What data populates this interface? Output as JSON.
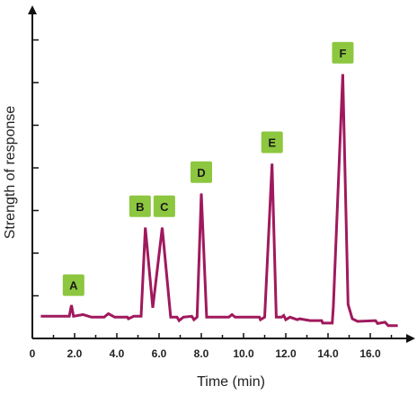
{
  "chart_data": {
    "type": "line",
    "title": "",
    "xlabel": "Time (min)",
    "ylabel": "Strength of response",
    "xlim": [
      0,
      17.3
    ],
    "ylim": [
      0,
      8
    ],
    "xticks": [
      "0",
      "2.0",
      "4.0",
      "6.0",
      "8.0",
      "10.0",
      "12.0",
      "14.0",
      "16.0"
    ],
    "xtick_values": [
      0,
      2,
      4,
      6,
      8,
      10,
      12,
      14,
      16
    ],
    "ytick_count": 7,
    "grid": false,
    "line_color": "#a0195d",
    "label_color": "#8dc63f",
    "series": [
      {
        "points": [
          [
            0.4,
            0.52
          ],
          [
            1.75,
            0.52
          ],
          [
            1.85,
            0.78
          ],
          [
            1.95,
            0.52
          ],
          [
            2.4,
            0.56
          ],
          [
            2.8,
            0.5
          ],
          [
            3.4,
            0.5
          ],
          [
            3.6,
            0.58
          ],
          [
            3.9,
            0.5
          ],
          [
            4.5,
            0.5
          ],
          [
            4.55,
            0.46
          ],
          [
            4.8,
            0.52
          ],
          [
            5.15,
            0.52
          ],
          [
            5.35,
            2.6
          ],
          [
            5.7,
            0.72
          ],
          [
            6.15,
            2.6
          ],
          [
            6.55,
            0.5
          ],
          [
            6.85,
            0.5
          ],
          [
            6.95,
            0.42
          ],
          [
            7.15,
            0.5
          ],
          [
            7.55,
            0.52
          ],
          [
            7.65,
            0.44
          ],
          [
            7.8,
            0.5
          ],
          [
            8.0,
            3.4
          ],
          [
            8.25,
            0.5
          ],
          [
            9.3,
            0.5
          ],
          [
            9.45,
            0.56
          ],
          [
            9.6,
            0.5
          ],
          [
            10.75,
            0.5
          ],
          [
            10.8,
            0.44
          ],
          [
            11.0,
            0.5
          ],
          [
            11.35,
            4.1
          ],
          [
            11.55,
            0.5
          ],
          [
            11.8,
            0.5
          ],
          [
            11.9,
            0.54
          ],
          [
            12.0,
            0.44
          ],
          [
            12.2,
            0.5
          ],
          [
            12.55,
            0.44
          ],
          [
            12.65,
            0.46
          ],
          [
            13.15,
            0.42
          ],
          [
            13.7,
            0.42
          ],
          [
            13.75,
            0.36
          ],
          [
            14.2,
            0.36
          ],
          [
            14.25,
            0.74
          ],
          [
            14.7,
            6.2
          ],
          [
            14.95,
            0.8
          ],
          [
            15.15,
            0.46
          ],
          [
            15.4,
            0.4
          ],
          [
            16.25,
            0.42
          ],
          [
            16.35,
            0.35
          ],
          [
            16.7,
            0.38
          ],
          [
            16.85,
            0.3
          ],
          [
            17.3,
            0.3
          ]
        ]
      }
    ],
    "annotations": [
      {
        "text": "A",
        "x": 1.95,
        "y": 1.25
      },
      {
        "text": "B",
        "x": 5.1,
        "y": 3.1
      },
      {
        "text": "C",
        "x": 6.25,
        "y": 3.1
      },
      {
        "text": "D",
        "x": 8.0,
        "y": 3.9
      },
      {
        "text": "E",
        "x": 11.35,
        "y": 4.6
      },
      {
        "text": "F",
        "x": 14.7,
        "y": 6.7
      }
    ]
  }
}
